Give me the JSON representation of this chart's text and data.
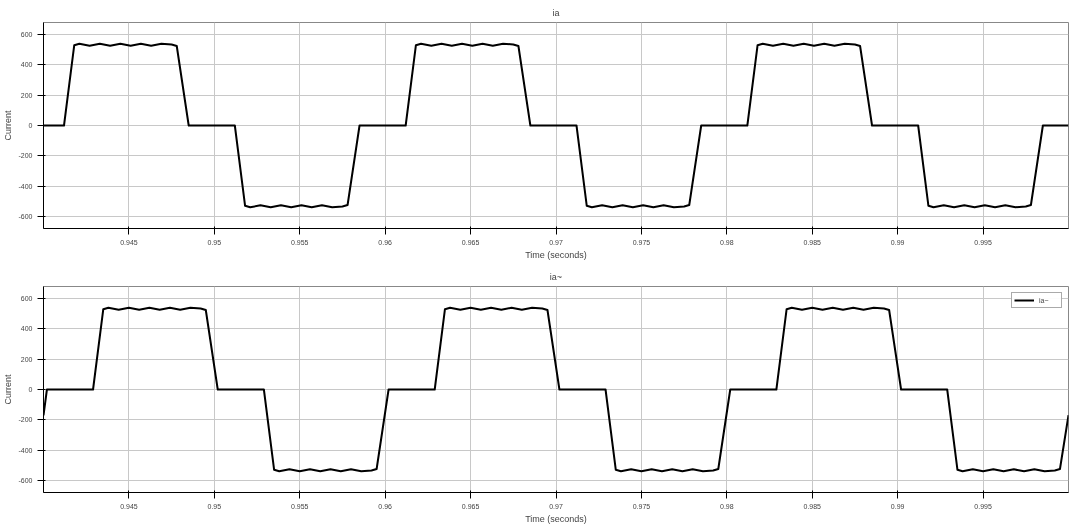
{
  "chart_data": [
    {
      "type": "line",
      "title": "ia",
      "xlabel": "Time (seconds)",
      "ylabel": "Current",
      "xlim": [
        0.94,
        1.0
      ],
      "ylim": [
        -680,
        680
      ],
      "xticks": [
        0.945,
        0.95,
        0.955,
        0.96,
        0.965,
        0.97,
        0.975,
        0.98,
        0.985,
        0.99,
        0.995
      ],
      "yticks": [
        -600,
        -400,
        -200,
        0,
        200,
        400,
        600
      ],
      "grid": true,
      "legend": false,
      "line_style": "solid",
      "series": [
        {
          "color": "#000000",
          "x": [
            0.94,
            0.9412,
            0.9418,
            0.9421,
            0.9427,
            0.9433,
            0.9439,
            0.9445,
            0.9451,
            0.9457,
            0.9463,
            0.9469,
            0.9475,
            0.9478,
            0.9485,
            0.9512,
            0.9518,
            0.9521,
            0.9527,
            0.9533,
            0.9539,
            0.9545,
            0.9551,
            0.9557,
            0.9563,
            0.9569,
            0.9575,
            0.9578,
            0.9585,
            0.9612,
            0.9618,
            0.9621,
            0.9627,
            0.9633,
            0.9639,
            0.9645,
            0.9651,
            0.9657,
            0.9663,
            0.9669,
            0.9675,
            0.9678,
            0.9685,
            0.9712,
            0.9718,
            0.9721,
            0.9727,
            0.9733,
            0.9739,
            0.9745,
            0.9751,
            0.9757,
            0.9763,
            0.9769,
            0.9775,
            0.9778,
            0.9785,
            0.9812,
            0.9818,
            0.9821,
            0.9827,
            0.9833,
            0.9839,
            0.9845,
            0.9851,
            0.9857,
            0.9863,
            0.9869,
            0.9875,
            0.9878,
            0.9885,
            0.9912,
            0.9918,
            0.9921,
            0.9927,
            0.9933,
            0.9939,
            0.9945,
            0.9951,
            0.9957,
            0.9963,
            0.9969,
            0.9975,
            0.9978,
            0.9985,
            1.0
          ],
          "values": [
            0,
            0,
            530,
            540,
            527,
            540,
            527,
            540,
            527,
            540,
            527,
            540,
            535,
            525,
            0,
            0,
            -530,
            -540,
            -527,
            -540,
            -527,
            -540,
            -527,
            -540,
            -527,
            -540,
            -535,
            -525,
            0,
            0,
            530,
            540,
            527,
            540,
            527,
            540,
            527,
            540,
            527,
            540,
            535,
            525,
            0,
            0,
            -530,
            -540,
            -527,
            -540,
            -527,
            -540,
            -527,
            -540,
            -527,
            -540,
            -535,
            -525,
            0,
            0,
            530,
            540,
            527,
            540,
            527,
            540,
            527,
            540,
            527,
            540,
            535,
            525,
            0,
            0,
            -530,
            -540,
            -527,
            -540,
            -527,
            -540,
            -527,
            -540,
            -527,
            -540,
            -535,
            -525,
            0,
            0
          ]
        }
      ]
    },
    {
      "type": "line",
      "title": "ia~",
      "xlabel": "Time (seconds)",
      "ylabel": "Current",
      "xlim": [
        0.94,
        1.0
      ],
      "ylim": [
        -680,
        680
      ],
      "xticks": [
        0.945,
        0.95,
        0.955,
        0.96,
        0.965,
        0.97,
        0.975,
        0.98,
        0.985,
        0.99,
        0.995
      ],
      "yticks": [
        -600,
        -400,
        -200,
        0,
        200,
        400,
        600
      ],
      "grid": true,
      "legend": "top right",
      "line_style": "solid",
      "series": [
        {
          "name": "ia~",
          "color": "#000000",
          "x": [
            0.94,
            0.9402,
            0.9429,
            0.9435,
            0.9438,
            0.9444,
            0.945,
            0.9456,
            0.9462,
            0.9468,
            0.9474,
            0.948,
            0.9486,
            0.9492,
            0.9495,
            0.9502,
            0.9529,
            0.9535,
            0.9538,
            0.9544,
            0.955,
            0.9556,
            0.9562,
            0.9568,
            0.9574,
            0.958,
            0.9586,
            0.9592,
            0.9595,
            0.9602,
            0.9629,
            0.9635,
            0.9638,
            0.9644,
            0.965,
            0.9656,
            0.9662,
            0.9668,
            0.9674,
            0.968,
            0.9686,
            0.9692,
            0.9695,
            0.9702,
            0.9729,
            0.9735,
            0.9738,
            0.9744,
            0.975,
            0.9756,
            0.9762,
            0.9768,
            0.9774,
            0.978,
            0.9786,
            0.9792,
            0.9795,
            0.9802,
            0.9829,
            0.9835,
            0.9838,
            0.9844,
            0.985,
            0.9856,
            0.9862,
            0.9868,
            0.9874,
            0.988,
            0.9886,
            0.9892,
            0.9895,
            0.9902,
            0.9929,
            0.9935,
            0.9938,
            0.9944,
            0.995,
            0.9956,
            0.9962,
            0.9968,
            0.9974,
            0.998,
            0.9986,
            0.9992,
            0.9995,
            1.0
          ],
          "values": [
            -170,
            0,
            0,
            530,
            540,
            527,
            540,
            527,
            540,
            527,
            540,
            527,
            540,
            535,
            525,
            0,
            0,
            -530,
            -540,
            -527,
            -540,
            -527,
            -540,
            -527,
            -540,
            -527,
            -540,
            -535,
            -525,
            0,
            0,
            530,
            540,
            527,
            540,
            527,
            540,
            527,
            540,
            527,
            540,
            535,
            525,
            0,
            0,
            -530,
            -540,
            -527,
            -540,
            -527,
            -540,
            -527,
            -540,
            -527,
            -540,
            -535,
            -525,
            0,
            0,
            530,
            540,
            527,
            540,
            527,
            540,
            527,
            540,
            527,
            540,
            535,
            525,
            0,
            0,
            -530,
            -540,
            -527,
            -540,
            -527,
            -540,
            -527,
            -540,
            -527,
            -540,
            -535,
            -525,
            -170
          ]
        }
      ]
    }
  ]
}
